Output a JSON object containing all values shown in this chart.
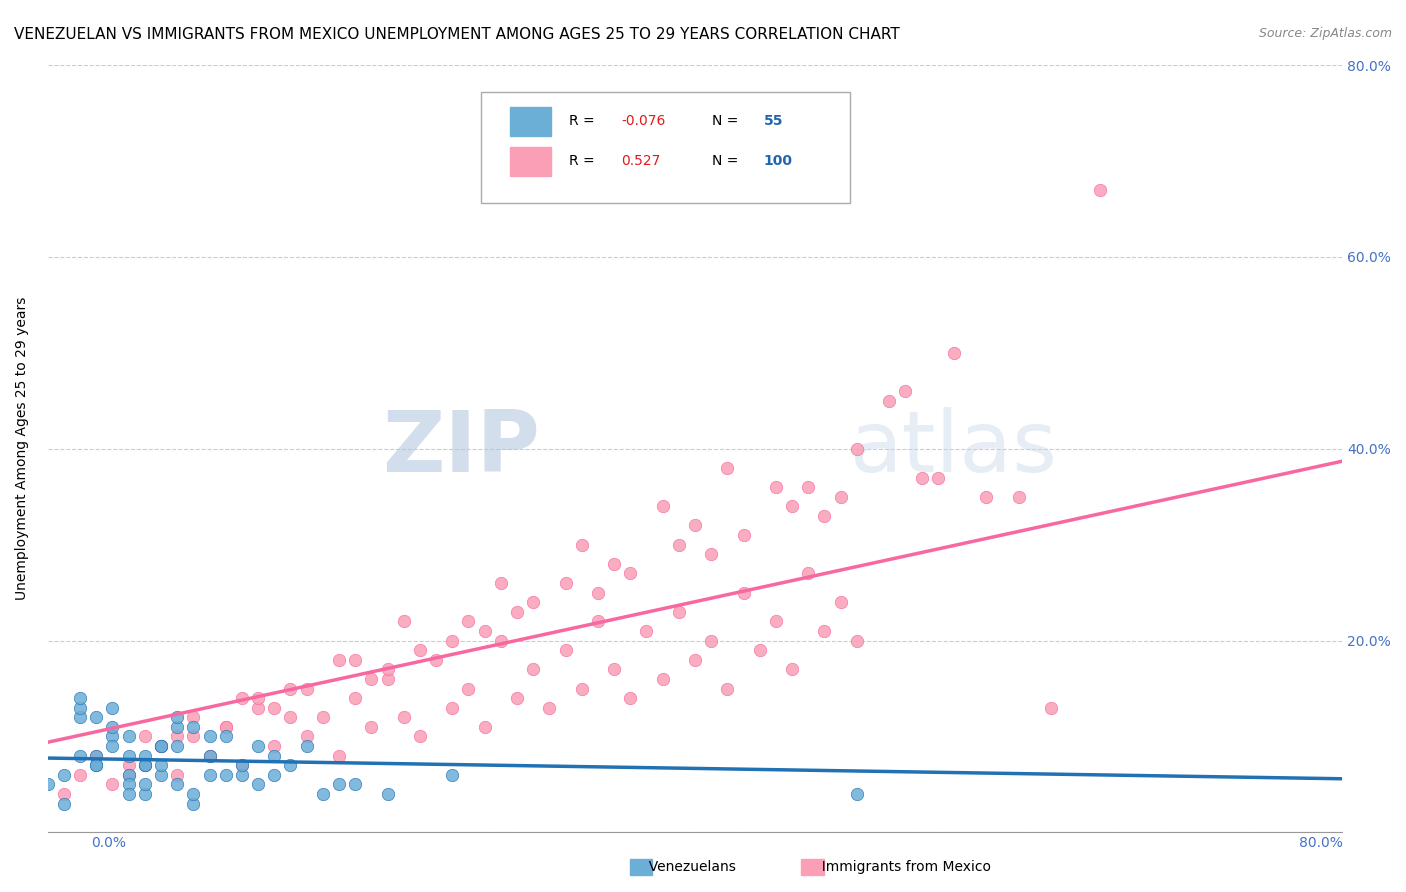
{
  "title": "VENEZUELAN VS IMMIGRANTS FROM MEXICO UNEMPLOYMENT AMONG AGES 25 TO 29 YEARS CORRELATION CHART",
  "source": "Source: ZipAtlas.com",
  "ylabel": "Unemployment Among Ages 25 to 29 years",
  "xlim": [
    0.0,
    0.8
  ],
  "ylim": [
    0.0,
    0.8
  ],
  "legend_R1": "-0.076",
  "legend_N1": "55",
  "legend_R2": "0.527",
  "legend_N2": "100",
  "blue_color": "#6baed6",
  "pink_color": "#fa9fb5",
  "blue_line_color": "#2171b5",
  "pink_line_color": "#f768a1",
  "watermark_zip": "ZIP",
  "watermark_atlas": "atlas",
  "title_fontsize": 11,
  "venezuelan_x": [
    0.0,
    0.02,
    0.01,
    0.03,
    0.05,
    0.04,
    0.06,
    0.07,
    0.02,
    0.01,
    0.03,
    0.05,
    0.08,
    0.06,
    0.09,
    0.04,
    0.02,
    0.07,
    0.1,
    0.05,
    0.11,
    0.03,
    0.06,
    0.08,
    0.12,
    0.04,
    0.09,
    0.14,
    0.07,
    0.02,
    0.13,
    0.05,
    0.1,
    0.16,
    0.06,
    0.03,
    0.08,
    0.15,
    0.11,
    0.04,
    0.17,
    0.07,
    0.12,
    0.19,
    0.09,
    0.05,
    0.14,
    0.21,
    0.1,
    0.06,
    0.18,
    0.08,
    0.5,
    0.25,
    0.13
  ],
  "venezuelan_y": [
    0.05,
    0.08,
    0.03,
    0.07,
    0.06,
    0.1,
    0.04,
    0.09,
    0.12,
    0.06,
    0.08,
    0.05,
    0.11,
    0.07,
    0.03,
    0.09,
    0.13,
    0.06,
    0.08,
    0.04,
    0.1,
    0.07,
    0.05,
    0.09,
    0.06,
    0.11,
    0.04,
    0.08,
    0.07,
    0.14,
    0.05,
    0.1,
    0.06,
    0.09,
    0.08,
    0.12,
    0.05,
    0.07,
    0.06,
    0.13,
    0.04,
    0.09,
    0.07,
    0.05,
    0.11,
    0.08,
    0.06,
    0.04,
    0.1,
    0.07,
    0.05,
    0.12,
    0.04,
    0.06,
    0.09
  ],
  "mexico_x": [
    0.01,
    0.02,
    0.03,
    0.04,
    0.05,
    0.06,
    0.07,
    0.08,
    0.09,
    0.1,
    0.11,
    0.12,
    0.13,
    0.14,
    0.15,
    0.16,
    0.17,
    0.18,
    0.19,
    0.2,
    0.21,
    0.22,
    0.23,
    0.24,
    0.25,
    0.26,
    0.27,
    0.28,
    0.29,
    0.3,
    0.31,
    0.32,
    0.33,
    0.34,
    0.35,
    0.36,
    0.37,
    0.38,
    0.39,
    0.4,
    0.41,
    0.42,
    0.43,
    0.44,
    0.45,
    0.46,
    0.47,
    0.48,
    0.49,
    0.5,
    0.08,
    0.12,
    0.18,
    0.22,
    0.28,
    0.33,
    0.38,
    0.42,
    0.47,
    0.52,
    0.1,
    0.15,
    0.2,
    0.25,
    0.3,
    0.35,
    0.4,
    0.45,
    0.5,
    0.55,
    0.07,
    0.14,
    0.21,
    0.27,
    0.34,
    0.41,
    0.48,
    0.54,
    0.6,
    0.65,
    0.06,
    0.11,
    0.16,
    0.23,
    0.29,
    0.36,
    0.43,
    0.49,
    0.56,
    0.62,
    0.05,
    0.09,
    0.13,
    0.19,
    0.26,
    0.32,
    0.39,
    0.46,
    0.53,
    0.58
  ],
  "mexico_y": [
    0.04,
    0.06,
    0.08,
    0.05,
    0.07,
    0.1,
    0.09,
    0.06,
    0.12,
    0.08,
    0.11,
    0.07,
    0.13,
    0.09,
    0.15,
    0.1,
    0.12,
    0.08,
    0.14,
    0.11,
    0.16,
    0.12,
    0.1,
    0.18,
    0.13,
    0.15,
    0.11,
    0.2,
    0.14,
    0.17,
    0.13,
    0.19,
    0.15,
    0.22,
    0.17,
    0.14,
    0.21,
    0.16,
    0.23,
    0.18,
    0.2,
    0.15,
    0.25,
    0.19,
    0.22,
    0.17,
    0.27,
    0.21,
    0.24,
    0.2,
    0.1,
    0.14,
    0.18,
    0.22,
    0.26,
    0.3,
    0.34,
    0.38,
    0.36,
    0.45,
    0.08,
    0.12,
    0.16,
    0.2,
    0.24,
    0.28,
    0.32,
    0.36,
    0.4,
    0.37,
    0.09,
    0.13,
    0.17,
    0.21,
    0.25,
    0.29,
    0.33,
    0.37,
    0.35,
    0.67,
    0.07,
    0.11,
    0.15,
    0.19,
    0.23,
    0.27,
    0.31,
    0.35,
    0.5,
    0.13,
    0.06,
    0.1,
    0.14,
    0.18,
    0.22,
    0.26,
    0.3,
    0.34,
    0.46,
    0.35
  ]
}
